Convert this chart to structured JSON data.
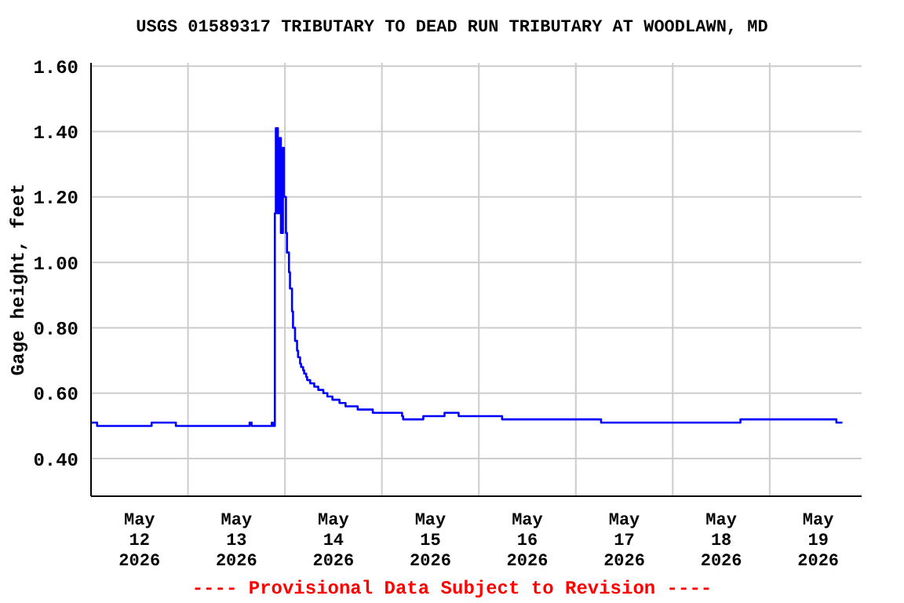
{
  "chart_data": {
    "type": "step",
    "title": "USGS 01589317 TRIBUTARY TO DEAD RUN TRIBUTARY AT WOODLAWN, MD",
    "ylabel": "Gage height, feet",
    "annotations": [
      "---- Provisional Data Subject to Revision ----"
    ],
    "x": [
      "2026-05-12T00:00",
      "2026-05-12T01:30",
      "2026-05-12T15:00",
      "2026-05-12T21:00",
      "2026-05-13T15:15",
      "2026-05-13T15:45",
      "2026-05-13T20:45",
      "2026-05-13T21:00",
      "2026-05-13T21:30",
      "2026-05-13T21:45",
      "2026-05-13T22:15",
      "2026-05-13T22:30",
      "2026-05-13T23:00",
      "2026-05-13T23:30",
      "2026-05-13T23:45",
      "2026-05-14T00:15",
      "2026-05-14T00:30",
      "2026-05-14T01:00",
      "2026-05-14T01:15",
      "2026-05-14T01:45",
      "2026-05-14T02:00",
      "2026-05-14T02:30",
      "2026-05-14T03:00",
      "2026-05-14T03:15",
      "2026-05-14T03:45",
      "2026-05-14T04:00",
      "2026-05-14T04:30",
      "2026-05-14T04:45",
      "2026-05-14T05:15",
      "2026-05-14T05:30",
      "2026-05-14T06:15",
      "2026-05-14T07:15",
      "2026-05-14T08:15",
      "2026-05-14T09:30",
      "2026-05-14T10:30",
      "2026-05-14T11:45",
      "2026-05-14T13:30",
      "2026-05-14T15:00",
      "2026-05-14T18:00",
      "2026-05-14T21:45",
      "2026-05-15T05:00",
      "2026-05-15T05:15",
      "2026-05-15T10:15",
      "2026-05-15T15:30",
      "2026-05-15T19:00",
      "2026-05-16T05:45",
      "2026-05-17T06:15",
      "2026-05-18T16:45",
      "2026-05-19T16:30",
      "2026-05-19T18:00"
    ],
    "series": [
      {
        "color": "#0000ff",
        "values": [
          0.51,
          0.5,
          0.51,
          0.5,
          0.51,
          0.5,
          0.51,
          0.5,
          1.15,
          1.41,
          1.15,
          1.38,
          1.09,
          1.35,
          1.2,
          1.09,
          1.03,
          0.97,
          0.92,
          0.85,
          0.8,
          0.76,
          0.73,
          0.71,
          0.69,
          0.68,
          0.67,
          0.66,
          0.65,
          0.64,
          0.63,
          0.62,
          0.61,
          0.6,
          0.59,
          0.58,
          0.57,
          0.56,
          0.55,
          0.54,
          0.53,
          0.52,
          0.53,
          0.54,
          0.53,
          0.52,
          0.51,
          0.52,
          0.51,
          0.51
        ]
      }
    ],
    "xlim": [
      "2026-05-12T00:00",
      "2026-05-19T22:45"
    ],
    "xticks": [
      {
        "value": "2026-05-12T12:00",
        "label": "May\n12\n2026"
      },
      {
        "value": "2026-05-13T00:00",
        "label": null
      },
      {
        "value": "2026-05-13T12:00",
        "label": "May\n13\n2026"
      },
      {
        "value": "2026-05-14T00:00",
        "label": null
      },
      {
        "value": "2026-05-14T12:00",
        "label": "May\n14\n2026"
      },
      {
        "value": "2026-05-15T00:00",
        "label": null
      },
      {
        "value": "2026-05-15T12:00",
        "label": "May\n15\n2026"
      },
      {
        "value": "2026-05-16T00:00",
        "label": null
      },
      {
        "value": "2026-05-16T12:00",
        "label": "May\n16\n2026"
      },
      {
        "value": "2026-05-17T00:00",
        "label": null
      },
      {
        "value": "2026-05-17T12:00",
        "label": "May\n17\n2026"
      },
      {
        "value": "2026-05-18T00:00",
        "label": null
      },
      {
        "value": "2026-05-18T12:00",
        "label": "May\n18\n2026"
      },
      {
        "value": "2026-05-19T00:00",
        "label": null
      },
      {
        "value": "2026-05-19T12:00",
        "label": "May\n19\n2026"
      }
    ],
    "ylim": [
      0.285,
      1.61
    ],
    "yticks": [
      {
        "value": 0.4,
        "label": "0.40"
      },
      {
        "value": 0.6,
        "label": "0.60"
      },
      {
        "value": 0.8,
        "label": "0.80"
      },
      {
        "value": 1.0,
        "label": "1.00"
      },
      {
        "value": 1.2,
        "label": "1.20"
      },
      {
        "value": 1.4,
        "label": "1.40"
      },
      {
        "value": 1.6,
        "label": "1.60"
      }
    ],
    "grid": true
  }
}
